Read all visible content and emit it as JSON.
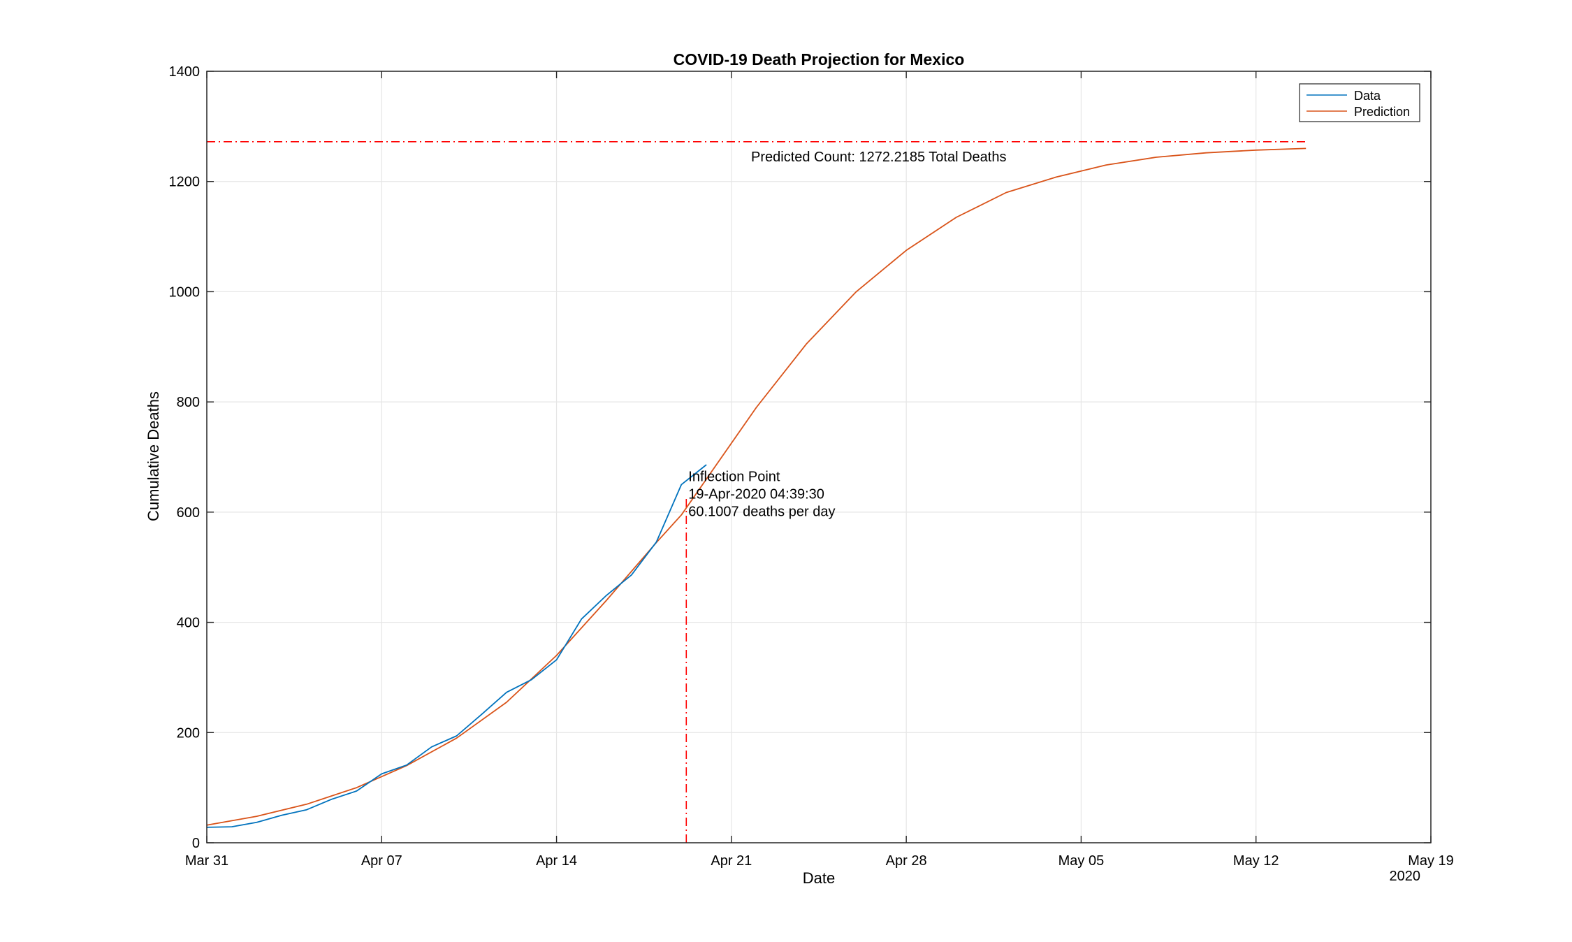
{
  "chart_data": {
    "type": "line",
    "title": "COVID-19 Death Projection for Mexico",
    "xlabel": "Date",
    "ylabel": "Cumulative Deaths",
    "x_axis": {
      "type": "date",
      "range": [
        "2020-03-31",
        "2020-05-19"
      ],
      "ticks": [
        "2020-03-31",
        "2020-04-07",
        "2020-04-14",
        "2020-04-21",
        "2020-04-28",
        "2020-05-05",
        "2020-05-12",
        "2020-05-19"
      ],
      "tick_labels": [
        "Mar 31",
        "Apr 07",
        "Apr 14",
        "Apr 21",
        "Apr 28",
        "May 05",
        "May 12",
        "May 19"
      ],
      "year_label": "2020"
    },
    "y_axis": {
      "range": [
        0,
        1400
      ],
      "ticks": [
        0,
        200,
        400,
        600,
        800,
        1000,
        1200,
        1400
      ],
      "tick_labels": [
        "0",
        "200",
        "400",
        "600",
        "800",
        "1000",
        "1200",
        "1400"
      ]
    },
    "grid": true,
    "legend_position": "top-right",
    "series": [
      {
        "name": "Data",
        "color": "#0072BD",
        "points": [
          [
            "2020-03-31",
            28
          ],
          [
            "2020-04-01",
            29
          ],
          [
            "2020-04-02",
            37
          ],
          [
            "2020-04-03",
            50
          ],
          [
            "2020-04-04",
            60
          ],
          [
            "2020-04-05",
            79
          ],
          [
            "2020-04-06",
            94
          ],
          [
            "2020-04-07",
            125
          ],
          [
            "2020-04-08",
            141
          ],
          [
            "2020-04-09",
            174
          ],
          [
            "2020-04-10",
            194
          ],
          [
            "2020-04-11",
            233
          ],
          [
            "2020-04-12",
            273
          ],
          [
            "2020-04-13",
            296
          ],
          [
            "2020-04-14",
            332
          ],
          [
            "2020-04-15",
            406
          ],
          [
            "2020-04-16",
            449
          ],
          [
            "2020-04-17",
            486
          ],
          [
            "2020-04-18",
            546
          ],
          [
            "2020-04-19",
            650
          ],
          [
            "2020-04-20",
            686
          ]
        ]
      },
      {
        "name": "Prediction",
        "color": "#D95319",
        "points": [
          [
            "2020-03-31",
            32
          ],
          [
            "2020-04-02",
            48
          ],
          [
            "2020-04-04",
            70
          ],
          [
            "2020-04-06",
            100
          ],
          [
            "2020-04-08",
            140
          ],
          [
            "2020-04-10",
            190
          ],
          [
            "2020-04-12",
            255
          ],
          [
            "2020-04-14",
            340
          ],
          [
            "2020-04-16",
            440
          ],
          [
            "2020-04-18",
            545
          ],
          [
            "2020-04-19",
            595
          ],
          [
            "2020-04-20",
            660
          ],
          [
            "2020-04-22",
            790
          ],
          [
            "2020-04-24",
            905
          ],
          [
            "2020-04-26",
            1000
          ],
          [
            "2020-04-28",
            1075
          ],
          [
            "2020-04-30",
            1135
          ],
          [
            "2020-05-02",
            1180
          ],
          [
            "2020-05-04",
            1208
          ],
          [
            "2020-05-06",
            1230
          ],
          [
            "2020-05-08",
            1244
          ],
          [
            "2020-05-10",
            1252
          ],
          [
            "2020-05-12",
            1257
          ],
          [
            "2020-05-14",
            1260
          ]
        ]
      }
    ],
    "reference_lines": [
      {
        "orientation": "horizontal",
        "value": 1272.2185,
        "from": "2020-03-31",
        "to": "2020-05-14",
        "color": "#FF0000",
        "style": "dash-dot"
      },
      {
        "orientation": "vertical",
        "value": "2020-04-19T04:39:30",
        "from": 0,
        "to": 630,
        "color": "#FF0000",
        "style": "dash-dot"
      }
    ],
    "annotations": [
      {
        "name": "predicted-count",
        "lines": [
          "Predicted Count: 1272.2185 Total Deaths"
        ]
      },
      {
        "name": "inflection-point",
        "lines": [
          "Inflection Point",
          "19-Apr-2020 04:39:30",
          "60.1007 deaths per day"
        ]
      }
    ]
  }
}
